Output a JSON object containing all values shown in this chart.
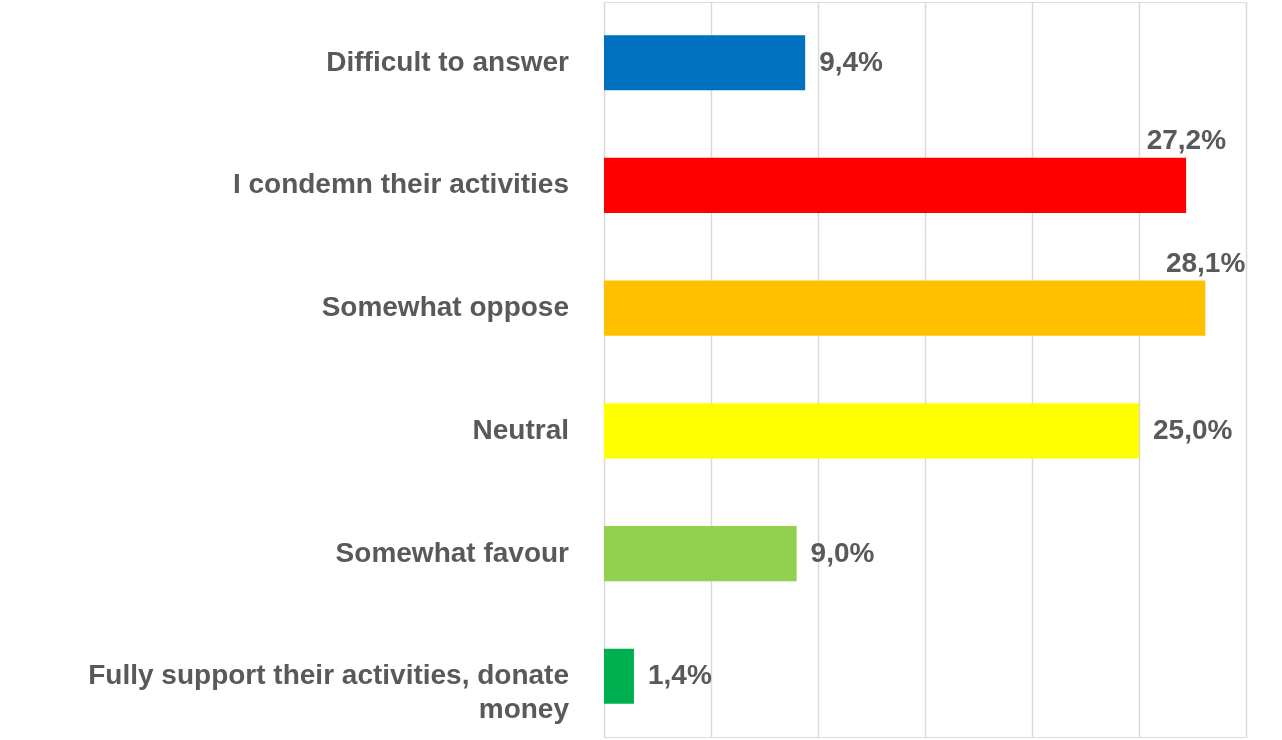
{
  "chart_data": {
    "type": "bar",
    "orientation": "horizontal",
    "categories": [
      "Difficult to answer",
      "I condemn their activities",
      "Somewhat oppose",
      "Neutral",
      "Somewhat favour",
      "Fully support their activities, donate money"
    ],
    "values": [
      9.4,
      27.2,
      28.1,
      25.0,
      9.0,
      1.4
    ],
    "colors": [
      "#0070c0",
      "#ff0000",
      "#ffc000",
      "#ffff00",
      "#92d050",
      "#00b050"
    ],
    "value_labels": [
      "9,4%",
      "27,2%",
      "28,1%",
      "25,0%",
      "9,0%",
      "1,4%"
    ],
    "xlim": [
      0,
      30
    ],
    "xticks": [
      {
        "value": 0,
        "label": null
      },
      {
        "value": 5,
        "label": null
      },
      {
        "value": 10,
        "label": null
      },
      {
        "value": 15,
        "label": null
      },
      {
        "value": 20,
        "label": null
      },
      {
        "value": 25,
        "label": null
      },
      {
        "value": 30,
        "label": null
      }
    ],
    "grid": "x",
    "tick_labels": "y"
  }
}
